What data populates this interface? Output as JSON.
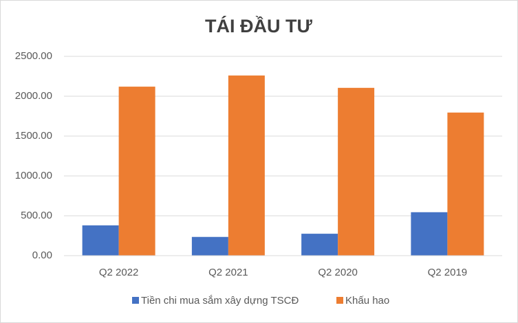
{
  "chart_data": {
    "type": "bar",
    "title": "TÁI ĐẦU TƯ",
    "categories": [
      "Q2 2022",
      "Q2 2021",
      "Q2 2020",
      "Q2 2019"
    ],
    "series": [
      {
        "name": "Tiền chi mua sắm xây dựng TSCĐ",
        "color": "#4472c4",
        "values": [
          380,
          235,
          275,
          545
        ]
      },
      {
        "name": "Khấu hao",
        "color": "#ed7d31",
        "values": [
          2120,
          2260,
          2105,
          1795
        ]
      }
    ],
    "ylim": [
      0,
      2500
    ],
    "yticks": [
      {
        "value": 0,
        "label": "0.00"
      },
      {
        "value": 500,
        "label": "500.00"
      },
      {
        "value": 1000,
        "label": "1000.00"
      },
      {
        "value": 1500,
        "label": "1500.00"
      },
      {
        "value": 2000,
        "label": "2000.00"
      },
      {
        "value": 2500,
        "label": "2500.00"
      }
    ],
    "grid": true,
    "legend": "bottom"
  }
}
